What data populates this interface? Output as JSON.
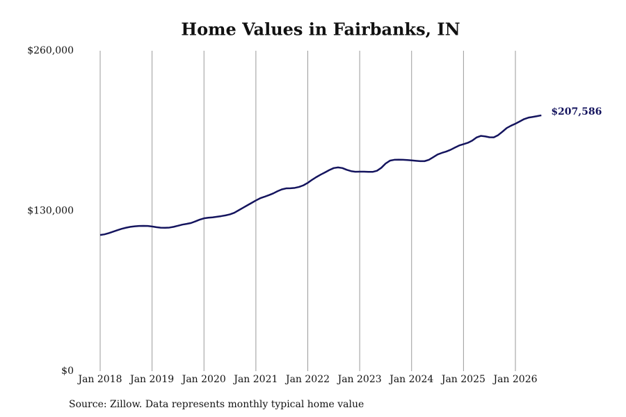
{
  "chart_data": {
    "type": "line",
    "title": "Home Values in Fairbanks, IN",
    "source": "Source: Zillow. Data represents monthly typical home value",
    "categories": [
      "Jan 2018",
      null,
      null,
      null,
      null,
      null,
      null,
      null,
      null,
      null,
      null,
      null,
      "Jan 2019",
      null,
      null,
      null,
      null,
      null,
      null,
      null,
      null,
      null,
      null,
      null,
      "Jan 2020",
      null,
      null,
      null,
      null,
      null,
      null,
      null,
      null,
      null,
      null,
      null,
      "Jan 2021",
      null,
      null,
      null,
      null,
      null,
      null,
      null,
      null,
      null,
      null,
      null,
      "Jan 2022",
      null,
      null,
      null,
      null,
      null,
      null,
      null,
      null,
      null,
      null,
      null,
      "Jan 2023",
      null,
      null,
      null,
      null,
      null,
      null,
      null,
      null,
      null,
      null,
      null,
      "Jan 2024",
      null,
      null,
      null,
      null,
      null,
      null,
      null,
      null,
      null,
      null,
      null,
      "Jan 2025",
      null,
      null,
      null,
      null,
      null,
      null,
      null,
      null,
      null,
      null,
      null,
      "Jan 2026",
      null,
      null,
      null,
      null,
      null,
      null
    ],
    "values": [
      110500,
      111000,
      112000,
      113200,
      114400,
      115500,
      116400,
      117100,
      117500,
      117800,
      117900,
      117800,
      117400,
      116800,
      116400,
      116300,
      116500,
      117100,
      118000,
      118900,
      119500,
      120200,
      121500,
      122900,
      124000,
      124500,
      124800,
      125300,
      125800,
      126400,
      127200,
      128500,
      130500,
      132500,
      134500,
      136500,
      138500,
      140300,
      141500,
      142800,
      144200,
      146000,
      147500,
      148300,
      148400,
      148700,
      149500,
      150800,
      152800,
      155300,
      157500,
      159500,
      161300,
      163200,
      164800,
      165300,
      164800,
      163400,
      162300,
      161800,
      161900,
      161900,
      161700,
      161700,
      162600,
      165000,
      168500,
      170800,
      171500,
      171600,
      171500,
      171300,
      171000,
      170700,
      170400,
      170400,
      171500,
      173600,
      175800,
      177100,
      178200,
      179600,
      181400,
      183100,
      184200,
      185300,
      187000,
      189600,
      190900,
      190500,
      189800,
      189700,
      191500,
      194300,
      197300,
      199200,
      200800,
      202600,
      204500,
      205700,
      206300,
      206900,
      207586
    ],
    "value_labels": [
      null,
      null,
      null,
      null,
      null,
      null,
      null,
      null,
      null,
      null,
      null,
      null,
      null,
      null,
      null,
      null,
      null,
      null,
      null,
      null,
      null,
      null,
      null,
      null,
      null,
      null,
      null,
      null,
      null,
      null,
      null,
      null,
      null,
      null,
      null,
      null,
      null,
      null,
      null,
      null,
      null,
      null,
      null,
      null,
      null,
      null,
      null,
      null,
      null,
      null,
      null,
      null,
      null,
      null,
      null,
      null,
      null,
      null,
      null,
      null,
      null,
      null,
      null,
      null,
      null,
      null,
      null,
      null,
      null,
      null,
      null,
      null,
      null,
      null,
      null,
      null,
      null,
      null,
      null,
      null,
      null,
      null,
      null,
      null,
      null,
      null,
      null,
      null,
      null,
      null,
      null,
      null,
      null,
      null,
      null,
      null,
      null,
      null,
      null,
      null,
      null,
      null,
      "$207,586"
    ],
    "color": "#14145e",
    "ylim": [
      0,
      260000
    ],
    "yticks": [
      {
        "value": 0,
        "label": "$0"
      },
      {
        "value": 130000,
        "label": "$130,000"
      },
      {
        "value": 260000,
        "label": "$260,000"
      }
    ],
    "grid": "x"
  }
}
